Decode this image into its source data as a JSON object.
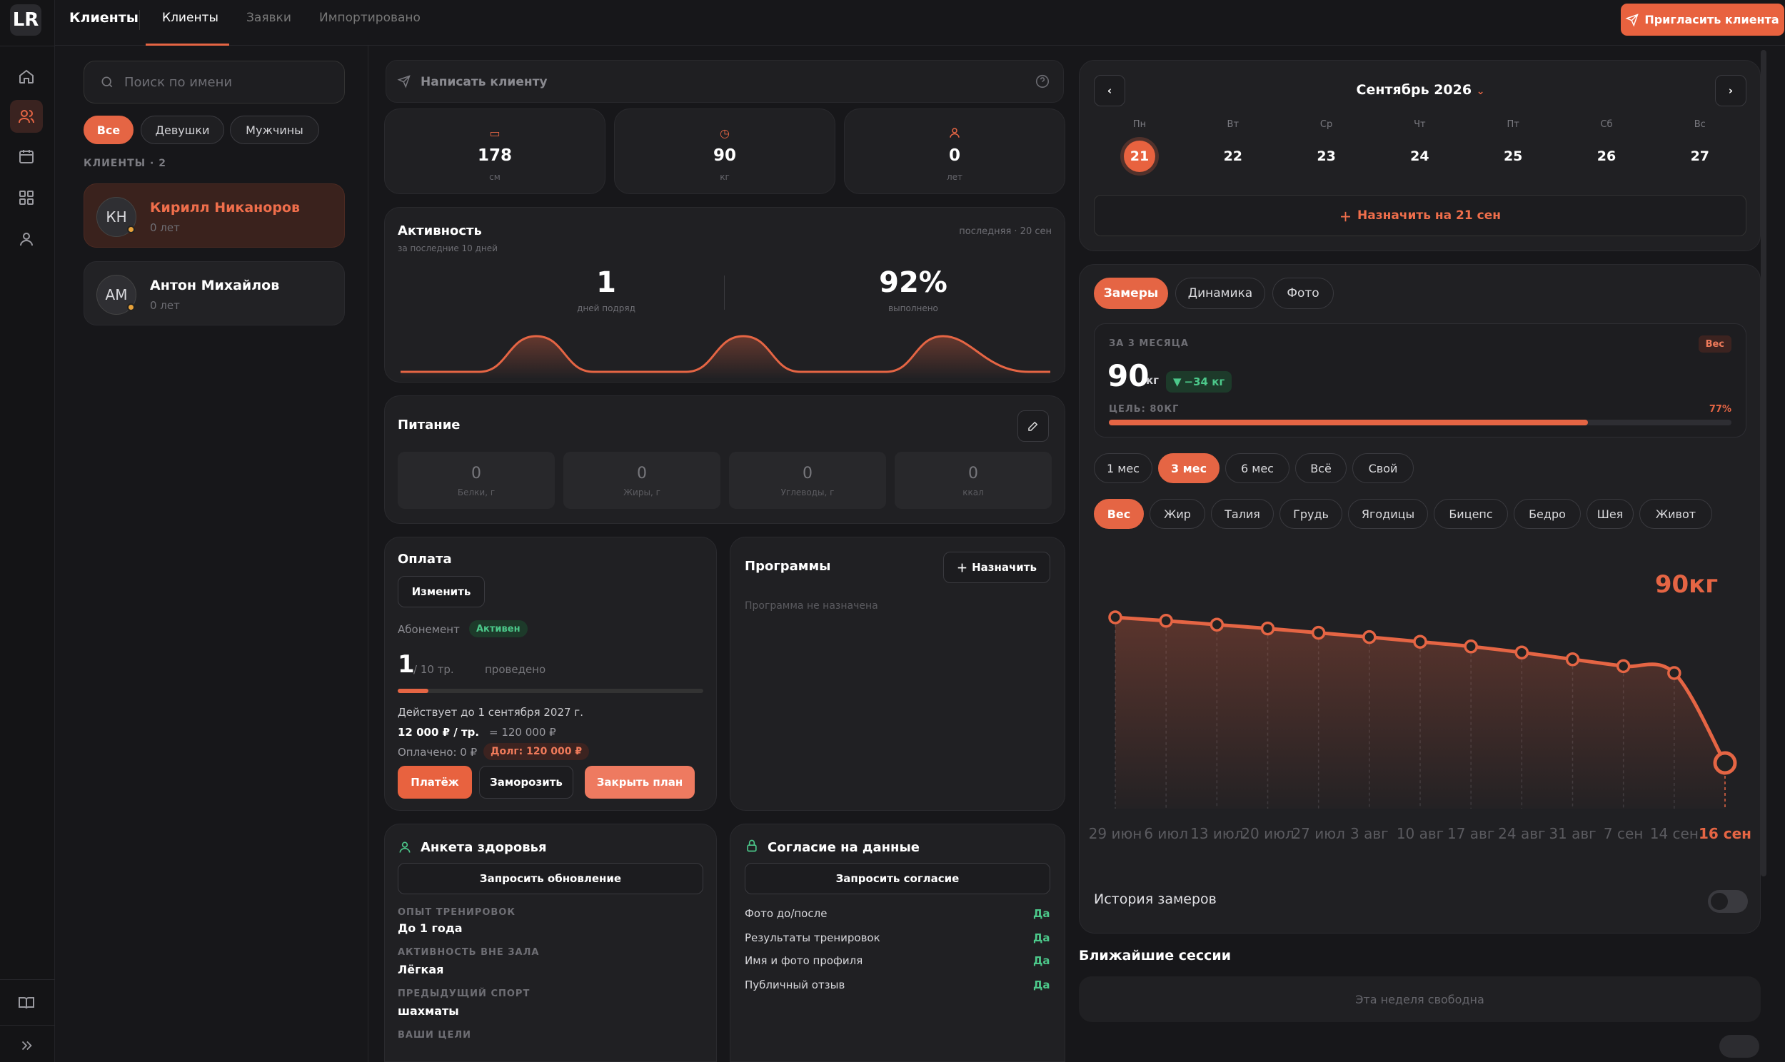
{
  "app": {
    "brand": "Клиенты",
    "logo": "LR",
    "tabs": [
      "Клиенты",
      "Заявки",
      "Импортировано"
    ],
    "invite_label": "Пригласить клиента"
  },
  "rail": {
    "icons": [
      "home-icon",
      "clients-icon",
      "calendar-icon",
      "grid-icon",
      "profile-icon",
      "book-icon",
      "expand-icon"
    ]
  },
  "sidebar": {
    "search_placeholder": "Поиск по имени",
    "filters": [
      "Все",
      "Девушки",
      "Мужчины"
    ],
    "count_label": "КЛИЕНТЫ · 2",
    "clients": [
      {
        "initials": "КН",
        "name": "Кирилл Никаноров",
        "age": "0 лет"
      },
      {
        "initials": "АМ",
        "name": "Антон Михайлов",
        "age": "0 лет"
      }
    ]
  },
  "message": {
    "label": "Написать клиенту"
  },
  "stats": [
    {
      "value": "178",
      "unit": "см",
      "icon": "ruler-icon"
    },
    {
      "value": "90",
      "unit": "кг",
      "icon": "scale-icon"
    },
    {
      "value": "0",
      "unit": "лет",
      "icon": "person-icon"
    }
  ],
  "activity": {
    "title": "Активность",
    "subtitle": "за последние 10 дней",
    "last": "последняя · 20 сен",
    "streak_value": "1",
    "streak_label": "дней подряд",
    "completion_value": "92%",
    "completion_label": "выполнено"
  },
  "nutrition": {
    "title": "Питание",
    "items": [
      {
        "value": "0",
        "label": "Белки, г"
      },
      {
        "value": "0",
        "label": "Жиры, г"
      },
      {
        "value": "0",
        "label": "Углеводы, г"
      },
      {
        "value": "0",
        "label": "ккал"
      }
    ]
  },
  "payment": {
    "title": "Оплата",
    "change_label": "Изменить",
    "subscription_label": "Абонемент",
    "status": "Активен",
    "done_value": "1",
    "done_total": "/ 10 тр.",
    "done_label": "проведено",
    "progress": 0.1,
    "valid_until": "Действует до 1 сентября 2027 г.",
    "price_bold": "12 000 ₽ / тр.",
    "price_total": "= 120 000 ₽",
    "paid": "Оплачено: 0 ₽",
    "debt": "Долг: 120 000 ₽",
    "pay_label": "Платёж",
    "freeze_label": "Заморозить",
    "close_label": "Закрыть план"
  },
  "programs": {
    "title": "Программы",
    "assign_label": "Назначить",
    "empty": "Программа не назначена"
  },
  "health": {
    "title": "Анкета здоровья",
    "request_label": "Запросить обновление",
    "fields": [
      {
        "label": "ОПЫТ ТРЕНИРОВОК",
        "value": "До 1 года"
      },
      {
        "label": "АКТИВНОСТЬ ВНЕ ЗАЛА",
        "value": "Лёгкая"
      },
      {
        "label": "ПРЕДЫДУЩИЙ СПОРТ",
        "value": "шахматы"
      },
      {
        "label": "ВАШИ ЦЕЛИ",
        "value": ""
      }
    ]
  },
  "consent": {
    "title": "Согласие на данные",
    "request_label": "Запросить согласие",
    "rows": [
      {
        "label": "Фото до/после",
        "value": "Да"
      },
      {
        "label": "Результаты тренировок",
        "value": "Да"
      },
      {
        "label": "Имя и фото профиля",
        "value": "Да"
      },
      {
        "label": "Публичный отзыв",
        "value": "Да"
      }
    ]
  },
  "calendar": {
    "month": "Сентябрь 2026",
    "days": [
      {
        "dow": "Пн",
        "date": "21"
      },
      {
        "dow": "Вт",
        "date": "22"
      },
      {
        "dow": "Ср",
        "date": "23"
      },
      {
        "dow": "Чт",
        "date": "24"
      },
      {
        "dow": "Пт",
        "date": "25"
      },
      {
        "dow": "Сб",
        "date": "26"
      },
      {
        "dow": "Вс",
        "date": "27"
      }
    ],
    "assign_label": "Назначить на 21 сен"
  },
  "measures": {
    "tabs": [
      "Замеры",
      "Динамика",
      "Фото"
    ],
    "period_label": "ЗА 3 МЕСЯЦА",
    "metric_badge": "Вес",
    "value": "90",
    "unit": "кг",
    "delta": "−34 кг",
    "goal_label": "ЦЕЛЬ: 80КГ",
    "goal_pct": "77%",
    "goal_progress": 0.77,
    "ranges": [
      "1 мес",
      "3 мес",
      "6 мес",
      "Всё",
      "Свой"
    ],
    "metrics": [
      "Вес",
      "Жир",
      "Талия",
      "Грудь",
      "Ягодицы",
      "Бицепс",
      "Бедро",
      "Шея",
      "Живот"
    ],
    "current_label": "90кг",
    "history_label": "История замеров"
  },
  "chart_data": {
    "type": "line",
    "x": [
      "29 июн",
      "6 июл",
      "13 июл",
      "20 июл",
      "27 июл",
      "3 авг",
      "10 авг",
      "17 авг",
      "24 авг",
      "31 авг",
      "7 сен",
      "14 сен",
      "16 сен"
    ],
    "values": [
      124,
      123.2,
      122.3,
      121.4,
      120.4,
      119.4,
      118.3,
      117.2,
      115.8,
      114.2,
      112.6,
      111,
      90
    ],
    "ylabel": "",
    "title": ""
  },
  "sessions": {
    "title": "Ближайшие сессии",
    "empty": "Эта неделя свободна"
  },
  "colors": {
    "accent": "#e56544",
    "bg": "#17171a",
    "card": "#202023",
    "success": "#4cc88a"
  }
}
